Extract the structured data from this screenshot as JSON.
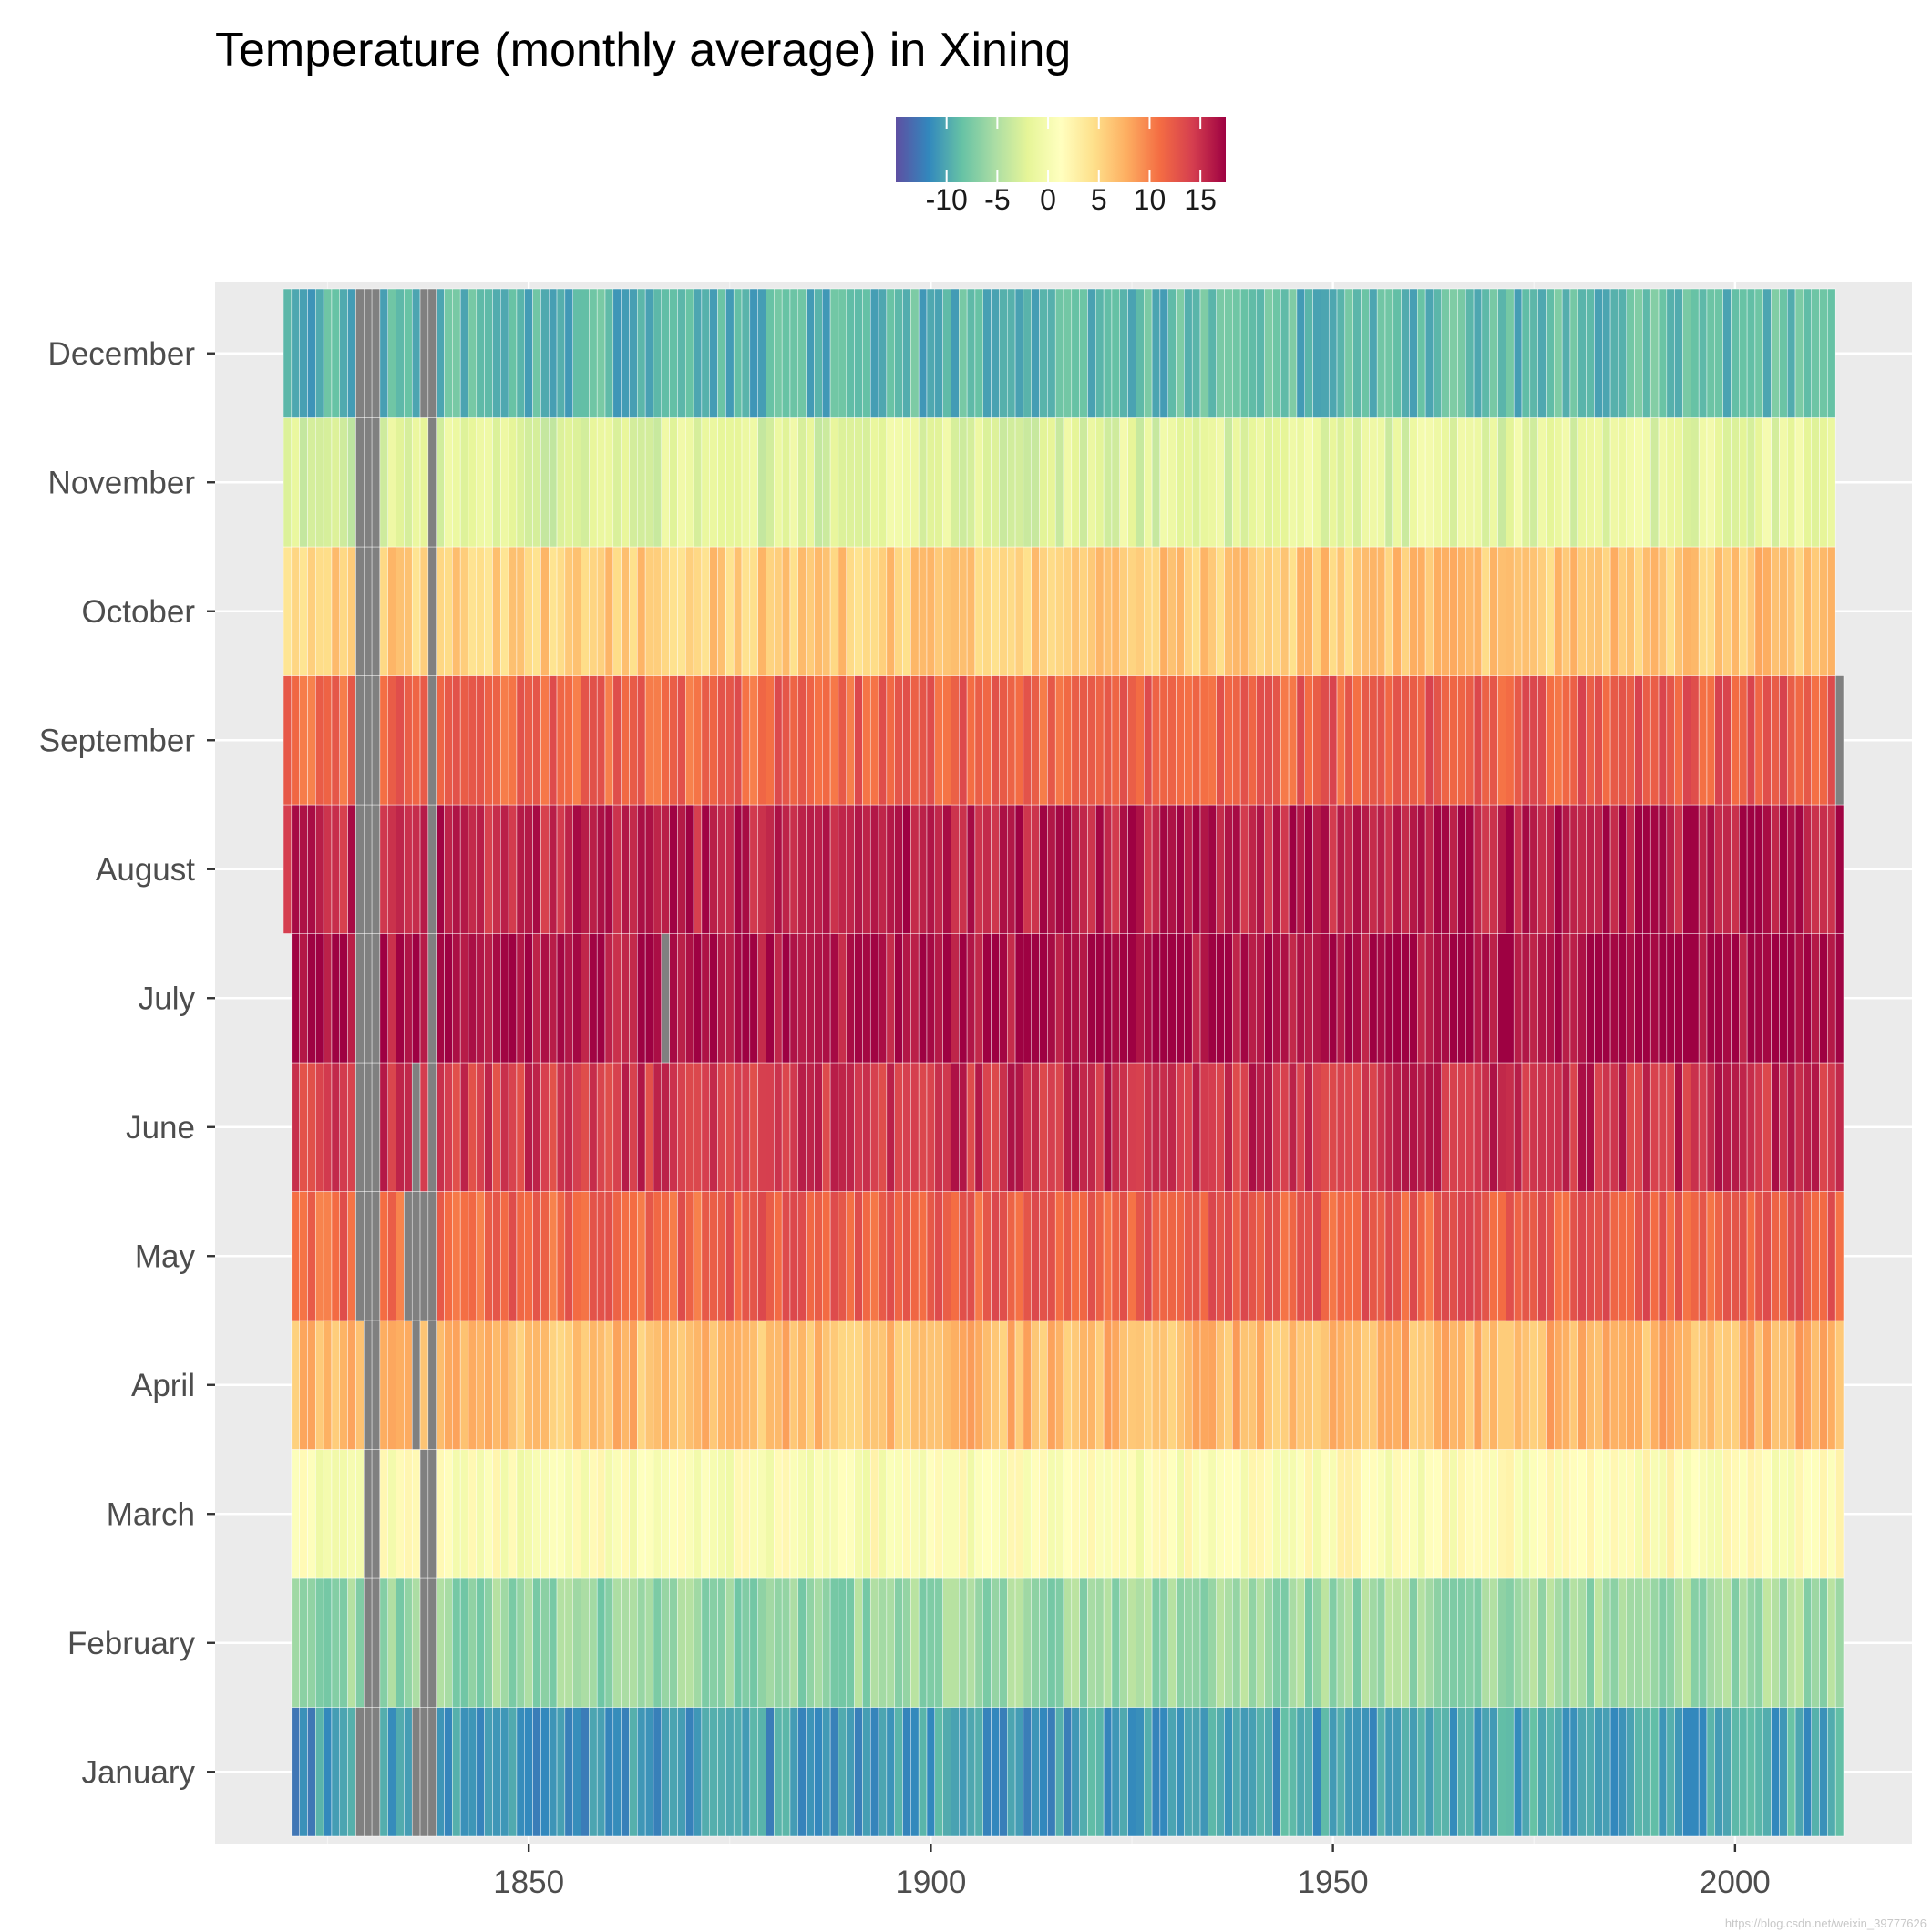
{
  "chart_data": {
    "type": "heatmap",
    "title": "Temperature (monthly average) in Xining",
    "xlabel": "",
    "ylabel": "",
    "x_ticks": [
      1850,
      1900,
      1950,
      2000
    ],
    "x_range": [
      1811,
      2022
    ],
    "year_range": [
      1820,
      2013
    ],
    "months": [
      "January",
      "February",
      "March",
      "April",
      "May",
      "June",
      "July",
      "August",
      "September",
      "October",
      "November",
      "December"
    ],
    "month_base_temps": [
      -11,
      -6.5,
      0.5,
      6.5,
      11.5,
      14.5,
      16.5,
      15.5,
      11.5,
      5.5,
      -2.5,
      -9.5
    ],
    "month_start_year": [
      1821,
      1821,
      1821,
      1821,
      1821,
      1821,
      1821,
      1820,
      1820,
      1820,
      1820,
      1820
    ],
    "month_end_year": [
      2013,
      2013,
      2013,
      2013,
      2013,
      2013,
      2013,
      2013,
      2013,
      2012,
      2012,
      2012
    ],
    "missing_cells": [
      {
        "month": "January",
        "years": [
          1829,
          1830,
          1831,
          1836,
          1837,
          1838
        ]
      },
      {
        "month": "February",
        "years": [
          1830,
          1831,
          1837,
          1838
        ]
      },
      {
        "month": "March",
        "years": [
          1830,
          1831,
          1837,
          1838
        ]
      },
      {
        "month": "April",
        "years": [
          1830,
          1831,
          1836,
          1838
        ]
      },
      {
        "month": "May",
        "years": [
          1829,
          1830,
          1831,
          1835,
          1836,
          1837,
          1838
        ]
      },
      {
        "month": "June",
        "years": [
          1829,
          1830,
          1831,
          1836,
          1838
        ]
      },
      {
        "month": "July",
        "years": [
          1829,
          1830,
          1831,
          1838,
          1867
        ]
      },
      {
        "month": "August",
        "years": [
          1829,
          1830,
          1831,
          1838
        ]
      },
      {
        "month": "September",
        "years": [
          1829,
          1830,
          1831,
          1838,
          2013
        ]
      },
      {
        "month": "October",
        "years": [
          1829,
          1830,
          1831,
          1838
        ]
      },
      {
        "month": "November",
        "years": [
          1829,
          1830,
          1831,
          1838
        ]
      },
      {
        "month": "December",
        "years": [
          1829,
          1830,
          1831,
          1837,
          1838
        ]
      }
    ],
    "fill_scale": {
      "palette": "Spectral",
      "range": [
        -15,
        17.5
      ],
      "breaks": [
        -10,
        -5,
        0,
        5,
        10,
        15
      ],
      "break_labels": [
        "-10",
        "-5",
        "0",
        "5",
        "10",
        "15"
      ],
      "missing_color": "#808080",
      "colors": [
        "#5e4fa2",
        "#3288bd",
        "#66c2a5",
        "#abdda4",
        "#e6f598",
        "#ffffbf",
        "#fee08b",
        "#fdae61",
        "#f46d43",
        "#d53e4f",
        "#9e0142"
      ]
    },
    "legend_position": "top",
    "panel_background": "#ebebeb",
    "grid": true
  },
  "watermark": "https://blog.csdn.net/weixin_39777626"
}
